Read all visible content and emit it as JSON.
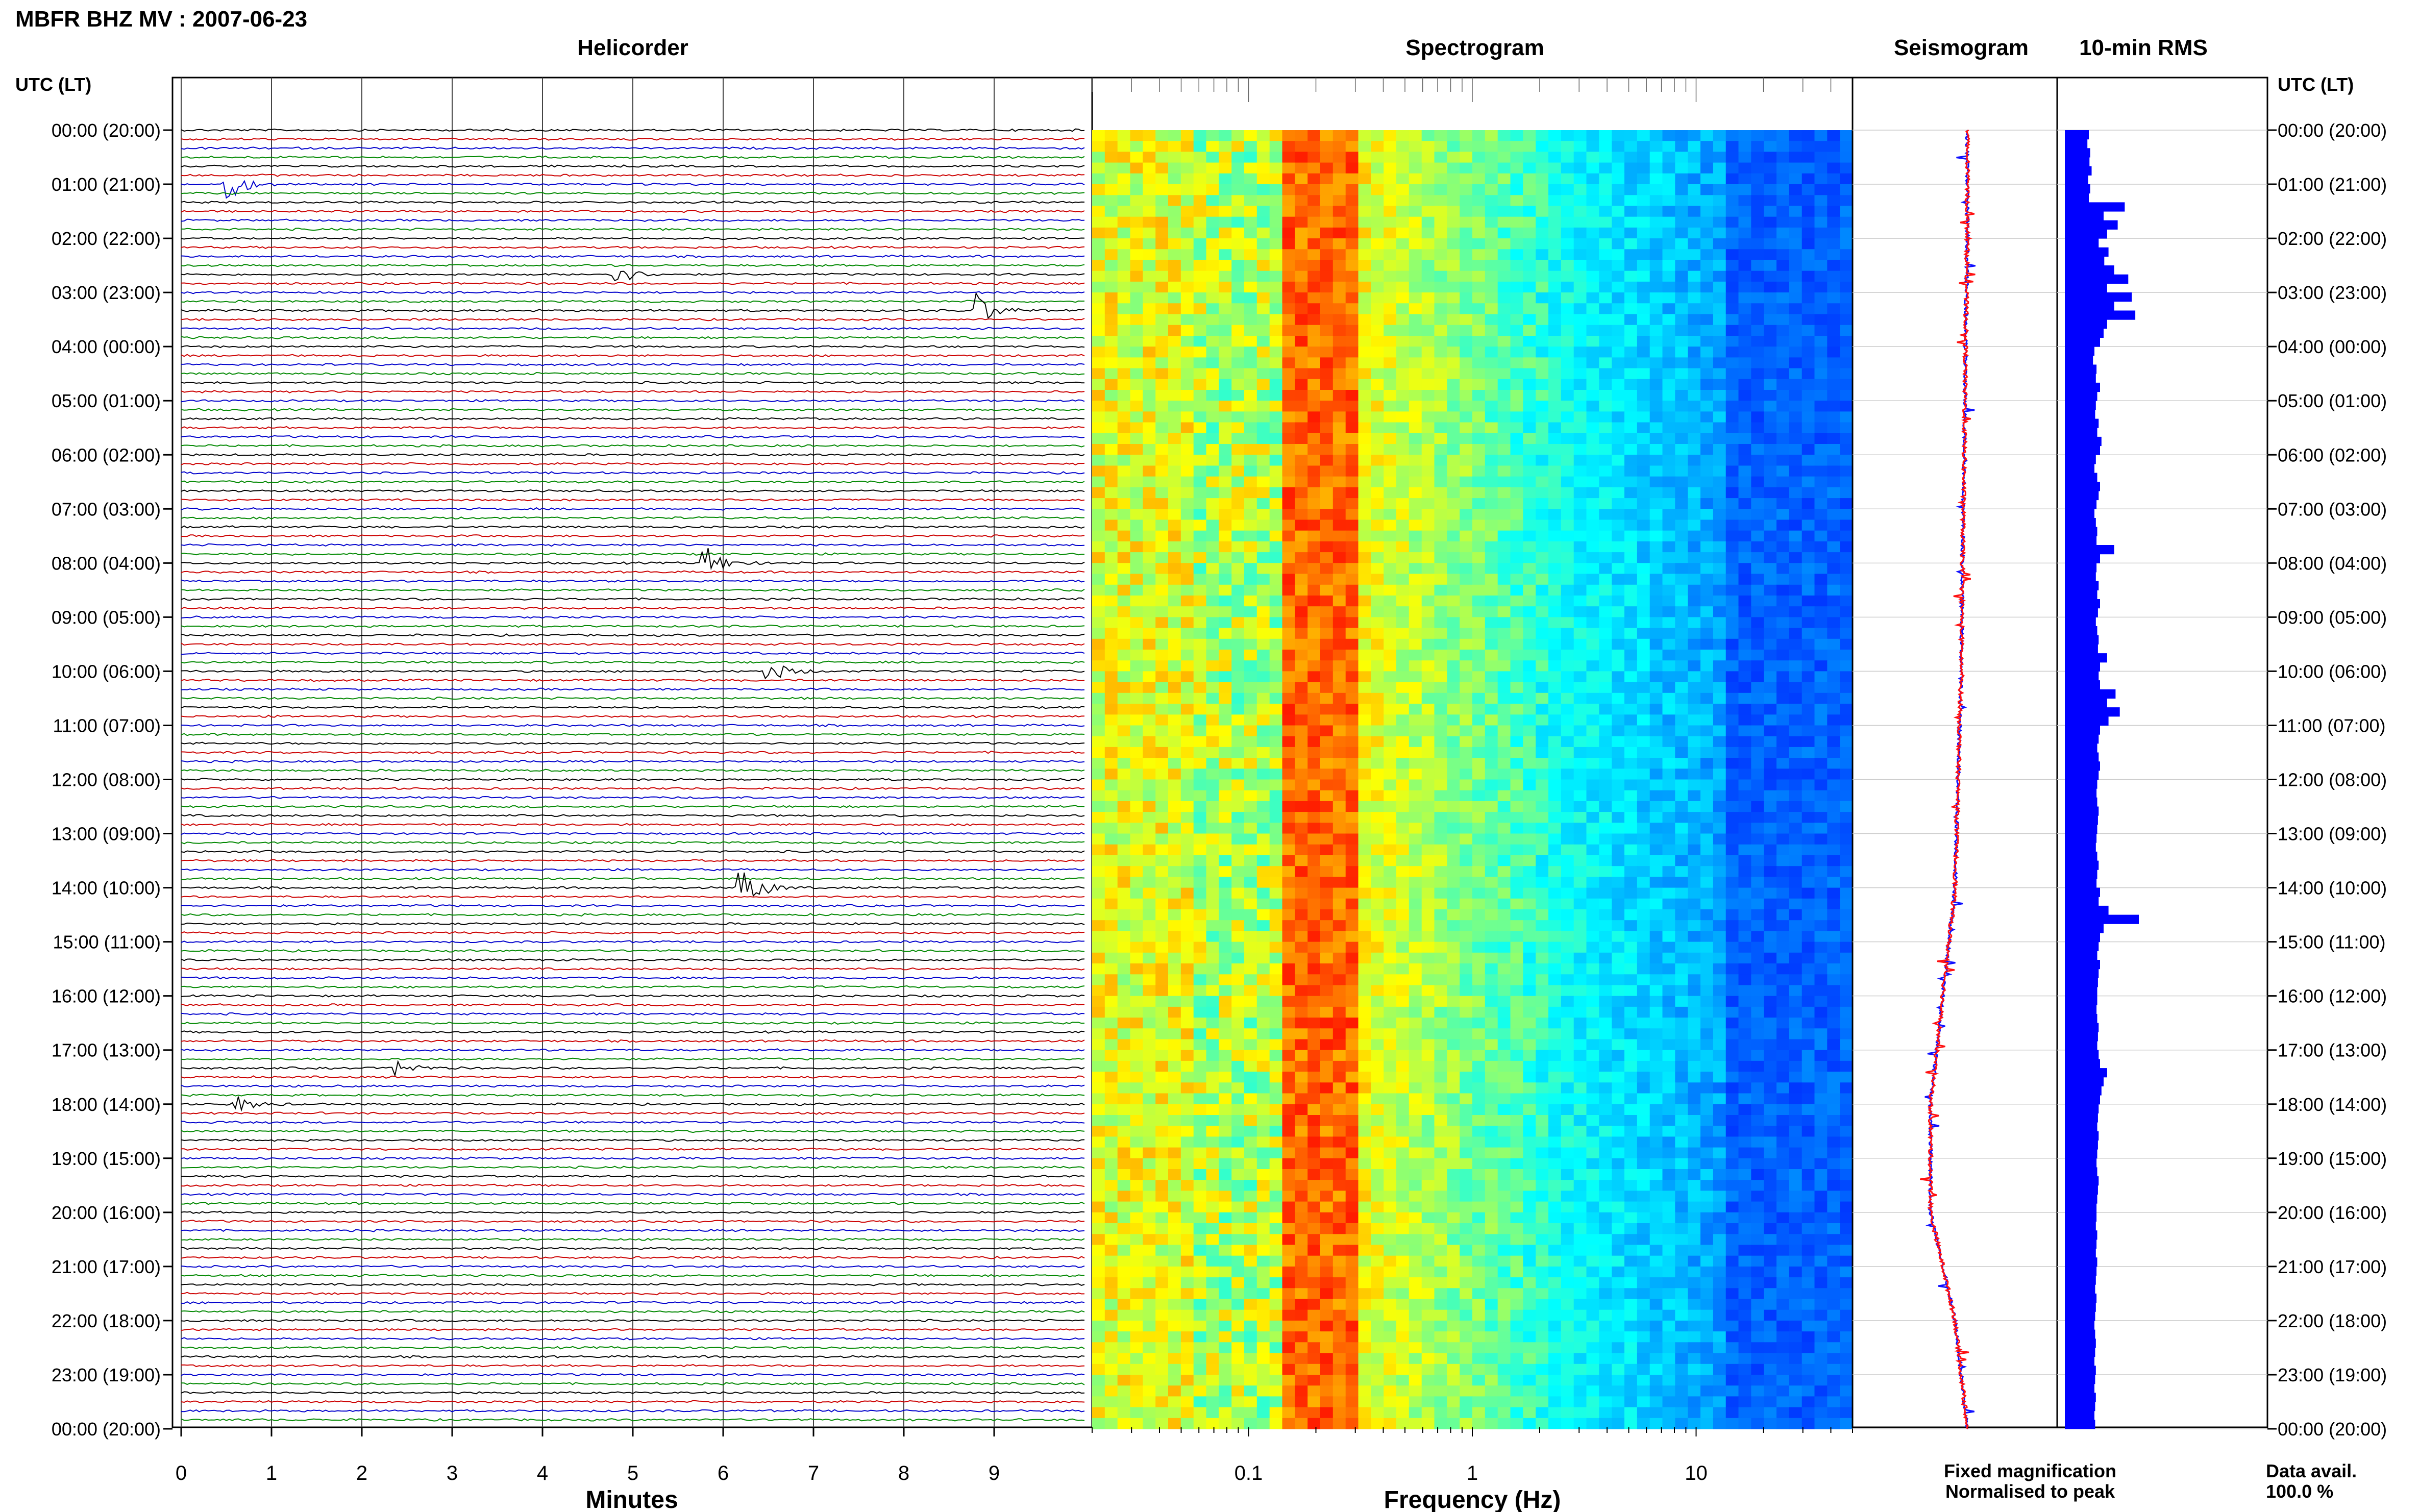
{
  "header": {
    "title": "MBFR BHZ MV : 2007-06-23"
  },
  "panels": {
    "helicorder": "Helicorder",
    "spectrogram": "Spectrogram",
    "seismogram": "Seismogram",
    "rms": "10-min RMS"
  },
  "axes": {
    "time_axis_label": "UTC (LT)",
    "time_ticks": [
      "00:00 (20:00)",
      "01:00 (21:00)",
      "02:00 (22:00)",
      "03:00 (23:00)",
      "04:00 (00:00)",
      "05:00 (01:00)",
      "06:00 (02:00)",
      "07:00 (03:00)",
      "08:00 (04:00)",
      "09:00 (05:00)",
      "10:00 (06:00)",
      "11:00 (07:00)",
      "12:00 (08:00)",
      "13:00 (09:00)",
      "14:00 (10:00)",
      "15:00 (11:00)",
      "16:00 (12:00)",
      "17:00 (13:00)",
      "18:00 (14:00)",
      "19:00 (15:00)",
      "20:00 (16:00)",
      "21:00 (17:00)",
      "22:00 (18:00)",
      "23:00 (19:00)",
      "00:00 (20:00)"
    ],
    "minutes_label": "Minutes",
    "minutes_ticks": [
      "0",
      "1",
      "2",
      "3",
      "4",
      "5",
      "6",
      "7",
      "8",
      "9"
    ],
    "frequency_label": "Frequency (Hz)",
    "frequency_ticks": [
      "0.1",
      "1",
      "10"
    ]
  },
  "legend": {
    "fixed": "Fixed magnification",
    "normalised": "Normalised to peak",
    "fixed_color": "#1010ff",
    "normalised_color": "#ff1010"
  },
  "footer": {
    "data_avail_label": "Data avail.",
    "data_avail_value": "100.0 %"
  },
  "colors": {
    "trace_cycle": [
      "#000000",
      "#cc0000",
      "#0000cc",
      "#008800"
    ],
    "rms_bar": "#0000ff"
  },
  "chart_data": [
    {
      "type": "line",
      "name_ref": "panels.helicorder",
      "x_range_minutes": [
        0,
        10
      ],
      "rows": 144,
      "row_minutes": 10,
      "events": [
        {
          "row": 6,
          "minute": 0.5,
          "amp": 6
        },
        {
          "row": 16,
          "minute": 4.8,
          "amp": 4
        },
        {
          "row": 20,
          "minute": 8.8,
          "amp": 6
        },
        {
          "row": 48,
          "minute": 5.8,
          "amp": 6
        },
        {
          "row": 60,
          "minute": 6.5,
          "amp": 4
        },
        {
          "row": 84,
          "minute": 6.2,
          "amp": 9
        },
        {
          "row": 108,
          "minute": 0.6,
          "amp": 3
        },
        {
          "row": 104,
          "minute": 2.4,
          "amp": 3
        }
      ]
    },
    {
      "type": "heatmap",
      "name_ref": "panels.spectrogram",
      "x_scale": "log",
      "x_range_hz": [
        0.02,
        50
      ],
      "y_range_hours": [
        0,
        24
      ]
    },
    {
      "type": "line",
      "name_ref": "panels.seismogram",
      "series": [
        {
          "name": "Fixed magnification",
          "color": "#1010ff"
        },
        {
          "name": "Normalised to peak",
          "color": "#ff1010"
        }
      ],
      "hours": [
        0,
        2,
        4,
        6,
        8,
        10,
        12,
        14,
        16,
        18,
        20,
        22,
        24
      ],
      "offset": [
        0,
        0,
        -0.3,
        -0.5,
        -0.8,
        -1,
        -1.5,
        -2,
        -4,
        -6,
        -6,
        -2,
        0
      ]
    },
    {
      "type": "bar",
      "name_ref": "panels.rms",
      "bin_minutes": 10,
      "values": [
        0.34,
        0.32,
        0.36,
        0.35,
        0.38,
        0.33,
        0.36,
        0.34,
        0.85,
        0.55,
        0.75,
        0.6,
        0.48,
        0.62,
        0.56,
        0.7,
        0.9,
        0.6,
        0.95,
        0.7,
        1.0,
        0.6,
        0.55,
        0.5,
        0.42,
        0.4,
        0.45,
        0.44,
        0.5,
        0.46,
        0.44,
        0.43,
        0.48,
        0.46,
        0.52,
        0.5,
        0.44,
        0.42,
        0.46,
        0.5,
        0.48,
        0.45,
        0.42,
        0.44,
        0.46,
        0.45,
        0.7,
        0.5,
        0.45,
        0.44,
        0.48,
        0.46,
        0.5,
        0.47,
        0.44,
        0.46,
        0.48,
        0.47,
        0.6,
        0.5,
        0.48,
        0.5,
        0.72,
        0.6,
        0.78,
        0.62,
        0.5,
        0.48,
        0.46,
        0.48,
        0.5,
        0.48,
        0.46,
        0.45,
        0.46,
        0.48,
        0.47,
        0.46,
        0.45,
        0.44,
        0.46,
        0.48,
        0.46,
        0.45,
        0.5,
        0.48,
        0.62,
        1.05,
        0.55,
        0.5,
        0.48,
        0.46,
        0.5,
        0.48,
        0.47,
        0.46,
        0.46,
        0.45,
        0.46,
        0.48,
        0.47,
        0.46,
        0.48,
        0.5,
        0.6,
        0.55,
        0.52,
        0.5,
        0.48,
        0.47,
        0.46,
        0.48,
        0.47,
        0.46,
        0.45,
        0.46,
        0.48,
        0.47,
        0.46,
        0.45,
        0.45,
        0.44,
        0.46,
        0.45,
        0.44,
        0.46,
        0.45,
        0.44,
        0.43,
        0.45,
        0.44,
        0.43,
        0.42,
        0.43,
        0.44,
        0.43,
        0.42,
        0.44,
        0.43,
        0.42,
        0.44,
        0.43,
        0.42,
        0.43
      ]
    }
  ]
}
